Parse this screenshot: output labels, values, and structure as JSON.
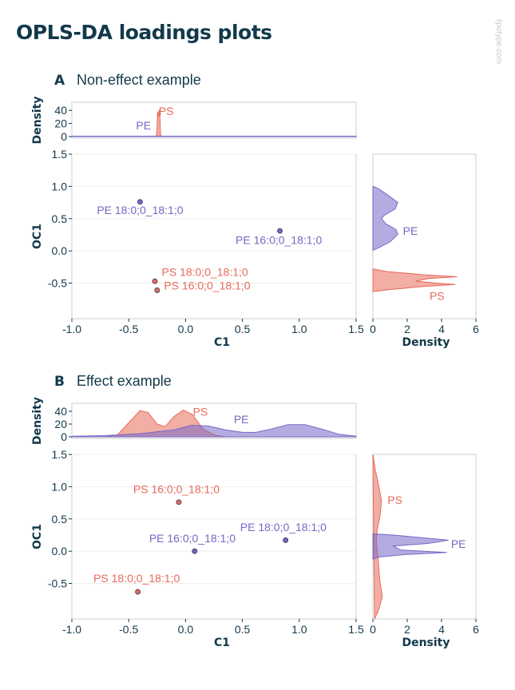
{
  "page": {
    "title": "OPLS-DA loadings plots",
    "watermark": "lipotype.com"
  },
  "colors": {
    "PS": "#e8695a",
    "PE": "#7668c6",
    "axis": "#12394a",
    "grid": "#eeeeee",
    "frame": "#cccccc"
  },
  "chart_data": [
    {
      "type": "scatter",
      "panel_label": "A",
      "panel_title": "Non-effect example",
      "xlabel": "C1",
      "ylabel": "OC1",
      "xlim": [
        -1.0,
        1.5
      ],
      "ylim": [
        -1.05,
        1.5
      ],
      "xticks": [
        "-1.0",
        "-0.5",
        "0.0",
        "0.5",
        "1.0",
        "1.5"
      ],
      "yticks": [
        "-0.5",
        "0.0",
        "0.5",
        "1.0",
        "1.5"
      ],
      "top_density": {
        "ylabel": "Density",
        "yticks": [
          "0",
          "20",
          "40"
        ],
        "ylim": [
          0,
          50
        ],
        "labels": [
          {
            "text": "PS",
            "group": "PS",
            "x": -0.17,
            "y": 33
          },
          {
            "text": "PE",
            "group": "PE",
            "x": -0.37,
            "y": 11
          }
        ],
        "series": [
          {
            "group": "PS",
            "points": [
              [
                -0.27,
                0
              ],
              [
                -0.255,
                2
              ],
              [
                -0.245,
                38
              ],
              [
                -0.238,
                30
              ],
              [
                -0.232,
                41
              ],
              [
                -0.226,
                35
              ],
              [
                -0.22,
                2
              ],
              [
                -0.2,
                0
              ]
            ]
          },
          {
            "group": "PE",
            "points": [
              [
                -1.0,
                0.6
              ],
              [
                1.5,
                0.6
              ]
            ]
          }
        ]
      },
      "right_density": {
        "xlabel": "Density",
        "xticks": [
          "0",
          "2",
          "4",
          "6"
        ],
        "xlim": [
          0,
          6
        ],
        "labels": [
          {
            "text": "PE",
            "group": "PE",
            "x": 1.75,
            "y": 0.25
          },
          {
            "text": "PS",
            "group": "PS",
            "x": 3.3,
            "y": -0.76
          }
        ],
        "series": [
          {
            "group": "PE",
            "points": [
              [
                0,
                1.0
              ],
              [
                0.3,
                0.97
              ],
              [
                1.0,
                0.84
              ],
              [
                1.45,
                0.75
              ],
              [
                1.3,
                0.65
              ],
              [
                0.65,
                0.55
              ],
              [
                0.5,
                0.5
              ],
              [
                0.75,
                0.42
              ],
              [
                1.35,
                0.33
              ],
              [
                1.45,
                0.26
              ],
              [
                1.0,
                0.14
              ],
              [
                0.35,
                0.05
              ],
              [
                0,
                0.01
              ]
            ]
          },
          {
            "group": "PS",
            "points": [
              [
                0,
                -0.28
              ],
              [
                0.8,
                -0.32
              ],
              [
                3.0,
                -0.37
              ],
              [
                4.9,
                -0.4
              ],
              [
                3.2,
                -0.43
              ],
              [
                2.5,
                -0.47
              ],
              [
                3.8,
                -0.5
              ],
              [
                4.8,
                -0.52
              ],
              [
                3.0,
                -0.55
              ],
              [
                1.0,
                -0.6
              ],
              [
                0,
                -0.63
              ]
            ]
          }
        ]
      },
      "points": [
        {
          "label": "PE 18:0;0_18:1;0",
          "group": "PE",
          "x": -0.4,
          "y": 0.76,
          "label_x": -0.78,
          "label_y": 0.57
        },
        {
          "label": "PE 16:0;0_18:1;0",
          "group": "PE",
          "x": 0.83,
          "y": 0.31,
          "label_x": 0.44,
          "label_y": 0.11
        },
        {
          "label": "PS 18:0;0_18:1;0",
          "group": "PS",
          "x": -0.27,
          "y": -0.47,
          "label_x": -0.21,
          "label_y": -0.39
        },
        {
          "label": "PS 16:0;0_18:1;0",
          "group": "PS",
          "x": -0.25,
          "y": -0.61,
          "label_x": -0.19,
          "label_y": -0.6
        }
      ]
    },
    {
      "type": "scatter",
      "panel_label": "B",
      "panel_title": "Effect example",
      "xlabel": "C1",
      "ylabel": "OC1",
      "xlim": [
        -1.0,
        1.5
      ],
      "ylim": [
        -1.05,
        1.5
      ],
      "xticks": [
        "-1.0",
        "-0.5",
        "0.0",
        "0.5",
        "1.0",
        "1.5"
      ],
      "yticks": [
        "-0.5",
        "0.0",
        "0.5",
        "1.0",
        "1.5"
      ],
      "top_density": {
        "ylabel": "Density",
        "yticks": [
          "0",
          "20",
          "40"
        ],
        "ylim": [
          0,
          50
        ],
        "labels": [
          {
            "text": "PS",
            "group": "PS",
            "x": 0.13,
            "y": 33
          },
          {
            "text": "PE",
            "group": "PE",
            "x": 0.49,
            "y": 21
          }
        ],
        "series": [
          {
            "group": "PS",
            "points": [
              [
                -0.7,
                0
              ],
              [
                -0.6,
                3
              ],
              [
                -0.5,
                22
              ],
              [
                -0.4,
                41
              ],
              [
                -0.33,
                38
              ],
              [
                -0.25,
                20
              ],
              [
                -0.18,
                16
              ],
              [
                -0.1,
                32
              ],
              [
                -0.02,
                42
              ],
              [
                0.06,
                35
              ],
              [
                0.15,
                13
              ],
              [
                0.25,
                3
              ],
              [
                0.35,
                0
              ]
            ]
          },
          {
            "group": "PE",
            "points": [
              [
                -1.0,
                1
              ],
              [
                -0.7,
                2
              ],
              [
                -0.4,
                5
              ],
              [
                -0.1,
                11
              ],
              [
                0.05,
                18
              ],
              [
                0.2,
                17
              ],
              [
                0.35,
                11
              ],
              [
                0.5,
                7
              ],
              [
                0.62,
                7
              ],
              [
                0.75,
                12
              ],
              [
                0.9,
                19
              ],
              [
                1.05,
                19
              ],
              [
                1.2,
                12
              ],
              [
                1.35,
                4
              ],
              [
                1.5,
                1
              ]
            ]
          }
        ]
      },
      "right_density": {
        "xlabel": "Density",
        "xticks": [
          "0",
          "2",
          "4",
          "6"
        ],
        "xlim": [
          0,
          6
        ],
        "labels": [
          {
            "text": "PS",
            "group": "PS",
            "x": 0.85,
            "y": 0.73
          },
          {
            "text": "PE",
            "group": "PE",
            "x": 4.55,
            "y": 0.05
          }
        ],
        "series": [
          {
            "group": "PS",
            "points": [
              [
                0,
                1.5
              ],
              [
                0.15,
                1.25
              ],
              [
                0.35,
                1.0
              ],
              [
                0.5,
                0.78
              ],
              [
                0.42,
                0.55
              ],
              [
                0.25,
                0.33
              ],
              [
                0.2,
                0.15
              ],
              [
                0.3,
                -0.1
              ],
              [
                0.4,
                -0.45
              ],
              [
                0.55,
                -0.7
              ],
              [
                0.35,
                -0.9
              ],
              [
                0.1,
                -1.05
              ]
            ]
          },
          {
            "group": "PE",
            "points": [
              [
                0,
                0.27
              ],
              [
                1.2,
                0.25
              ],
              [
                4.4,
                0.17
              ],
              [
                3.2,
                0.12
              ],
              [
                1.2,
                0.08
              ],
              [
                1.6,
                0.02
              ],
              [
                4.3,
                -0.02
              ],
              [
                2.0,
                -0.05
              ],
              [
                0.4,
                -0.09
              ],
              [
                0,
                -0.12
              ]
            ]
          }
        ]
      },
      "points": [
        {
          "label": "PS 16:0;0_18:1;0",
          "group": "PS",
          "x": -0.06,
          "y": 0.76,
          "label_x": -0.46,
          "label_y": 0.9
        },
        {
          "label": "PE 18:0;0_18:1;0",
          "group": "PE",
          "x": 0.88,
          "y": 0.17,
          "label_x": 0.48,
          "label_y": 0.31
        },
        {
          "label": "PE 16:0;0_18:1;0",
          "group": "PE",
          "x": 0.08,
          "y": 0.0,
          "label_x": -0.32,
          "label_y": 0.14
        },
        {
          "label": "PS 18:0;0_18:1;0",
          "group": "PS",
          "x": -0.42,
          "y": -0.63,
          "label_x": -0.81,
          "label_y": -0.48
        }
      ]
    }
  ]
}
